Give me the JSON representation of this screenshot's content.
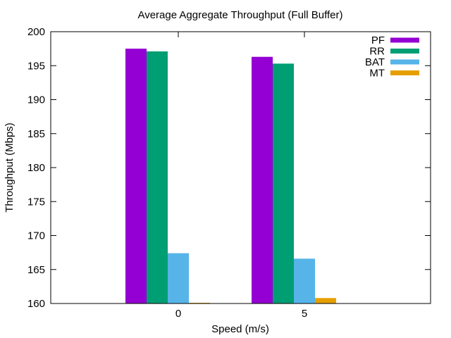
{
  "chart_data": {
    "type": "bar",
    "title": "Average Aggregate Throughput (Full Buffer)",
    "xlabel": "Speed (m/s)",
    "ylabel": "Throughput (Mbps)",
    "categories": [
      "0",
      "5"
    ],
    "ylim": [
      160,
      200
    ],
    "yticks": [
      "160",
      "165",
      "170",
      "175",
      "180",
      "185",
      "190",
      "195",
      "200"
    ],
    "grid": false,
    "legend_position": "top-right",
    "series": [
      {
        "name": "PF",
        "color": "#9400d3",
        "values": [
          197.5,
          196.3
        ]
      },
      {
        "name": "RR",
        "color": "#009e73",
        "values": [
          197.1,
          195.3
        ]
      },
      {
        "name": "BAT",
        "color": "#56b4e9",
        "values": [
          167.4,
          166.6
        ]
      },
      {
        "name": "MT",
        "color": "#e69f00",
        "values": [
          160.1,
          160.8
        ]
      }
    ]
  }
}
